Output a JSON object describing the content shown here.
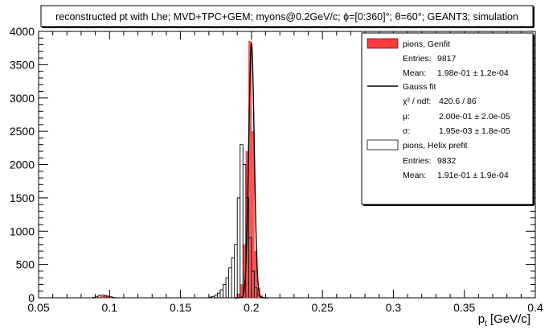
{
  "chart_data": {
    "type": "histogram",
    "title": "reconstructed pt with Lhe; MVD+TPC+GEM; myons@0.2GeV/c; ϕ=[0:360]°; θ=60°; GEANT3; simulation",
    "xlabel": "p_t [GeV/c]",
    "ylabel": "",
    "xlim": [
      0.05,
      0.4
    ],
    "ylim": [
      0,
      4000
    ],
    "x_ticks": [
      0.05,
      0.1,
      0.15,
      0.2,
      0.25,
      0.3,
      0.35,
      0.4
    ],
    "y_ticks": [
      0,
      500,
      1000,
      1500,
      2000,
      2500,
      3000,
      3500,
      4000
    ],
    "grid": false,
    "legend_position": "top-right",
    "series": [
      {
        "name": "pions, Genfit",
        "style": "filled-histogram",
        "color": "#ff3b3b",
        "bin_width": 0.002,
        "x": [
          0.093,
          0.095,
          0.097,
          0.099,
          0.101,
          0.189,
          0.191,
          0.193,
          0.195,
          0.197,
          0.199,
          0.201,
          0.203,
          0.205,
          0.207
        ],
        "values": [
          10,
          20,
          25,
          20,
          10,
          10,
          60,
          200,
          800,
          2200,
          3850,
          2500,
          700,
          150,
          30
        ]
      },
      {
        "name": "Gauss fit",
        "style": "line",
        "color": "#000000",
        "mu": 0.2,
        "sigma": 0.00195,
        "amplitude": 3820
      },
      {
        "name": "pions, Helix prefit",
        "style": "outline-histogram",
        "color": "#000000",
        "bin_width": 0.002,
        "x": [
          0.089,
          0.091,
          0.093,
          0.095,
          0.097,
          0.099,
          0.101,
          0.103,
          0.171,
          0.173,
          0.175,
          0.177,
          0.179,
          0.181,
          0.183,
          0.185,
          0.187,
          0.189,
          0.191,
          0.193,
          0.195,
          0.197,
          0.199,
          0.201,
          0.203,
          0.205,
          0.207
        ],
        "values": [
          5,
          20,
          35,
          40,
          35,
          25,
          15,
          5,
          10,
          20,
          40,
          70,
          120,
          200,
          300,
          450,
          600,
          800,
          1500,
          2300,
          2000,
          1500,
          900,
          400,
          150,
          40,
          10
        ]
      }
    ],
    "legend": [
      {
        "label": "pions, Genfit",
        "symbol": "filled",
        "color": "#ff3b3b",
        "stats": [
          {
            "label": "Entries:",
            "value": "9817"
          },
          {
            "label": "Mean:",
            "value": "1.98e-01 ± 1.2e-04"
          }
        ]
      },
      {
        "label": "Gauss fit",
        "symbol": "line",
        "color": "#000000",
        "stats": [
          {
            "label": "χ² / ndf:",
            "value": "420.6 / 86"
          },
          {
            "label": "μ:",
            "value": "2.00e-01 ± 2.0e-05"
          },
          {
            "label": "σ:",
            "value": "1.95e-03 ± 1.8e-05"
          }
        ]
      },
      {
        "label": "pions, Helix prefit",
        "symbol": "outline",
        "color": "#ffffff",
        "stats": [
          {
            "label": "Entries:",
            "value": "9832"
          },
          {
            "label": "Mean:",
            "value": "1.91e-01 ± 1.9e-04"
          }
        ]
      }
    ]
  }
}
